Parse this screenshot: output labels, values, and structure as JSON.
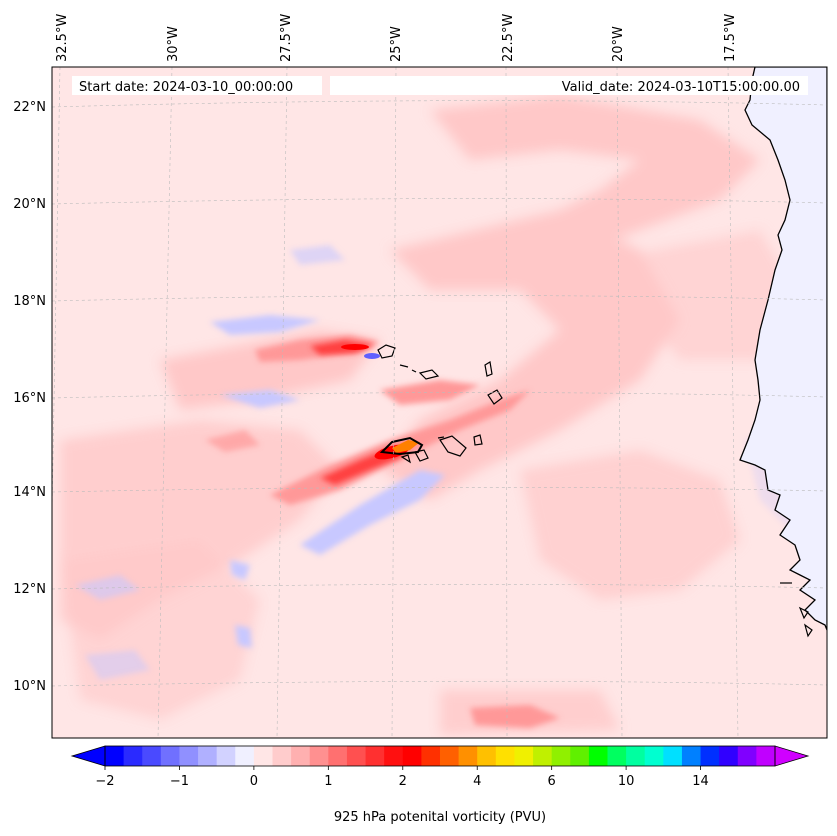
{
  "map": {
    "start_date": "Start date: 2024-03-10_00:00:00",
    "valid_date": "Valid_date: 2024-03-10T15:00:00.00",
    "lon_labels": [
      "32.5°W",
      "30°W",
      "27.5°W",
      "25°W",
      "22.5°W",
      "20°W",
      "17.5°W"
    ],
    "lat_labels": [
      "22°N",
      "20°N",
      "18°N",
      "16°N",
      "14°N",
      "12°N",
      "10°N"
    ],
    "field_colors": {
      "background": "#ffe6e6",
      "light_red": "#ffc8c8",
      "mid_red": "#ff9898",
      "red": "#ff4040",
      "deep_red": "#ff0000",
      "orange": "#ff8000",
      "light_blue": "#c8c8ff",
      "blue": "#6060ff",
      "land": "#f0f0ff"
    }
  },
  "colorbar": {
    "label": "925 hPa potenital vorticity (PVU)",
    "tick_labels": [
      "−2",
      "−1",
      "0",
      "1",
      "2",
      "4",
      "6",
      "10",
      "14"
    ],
    "colors": [
      "#0000ff",
      "#2a2aff",
      "#4a4aff",
      "#7070ff",
      "#9090ff",
      "#b0b0ff",
      "#d2d2ff",
      "#f0f0ff",
      "#ffe6e6",
      "#ffcccc",
      "#ffb0b0",
      "#ff9090",
      "#ff7070",
      "#ff5050",
      "#ff3030",
      "#ff1010",
      "#ff0000",
      "#ff3000",
      "#ff6000",
      "#ff9000",
      "#ffc000",
      "#ffe000",
      "#f0f000",
      "#c0f000",
      "#90f000",
      "#60f000",
      "#00ff00",
      "#00ff60",
      "#00ffa0",
      "#00ffd0",
      "#00e0ff",
      "#0080ff",
      "#0030ff",
      "#3000ff",
      "#8000ff",
      "#c000ff"
    ],
    "under_color": "#0000ff",
    "over_color": "#d000ff"
  }
}
